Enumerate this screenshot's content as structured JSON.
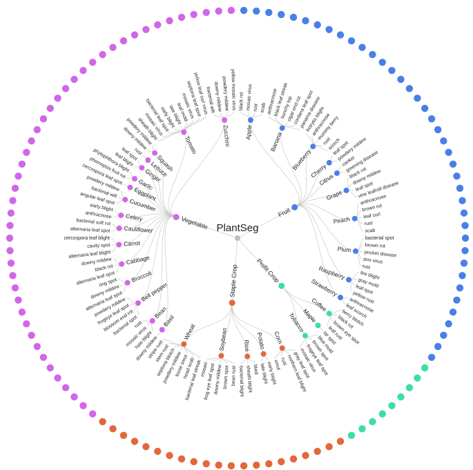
{
  "title": "PlantSeg",
  "colors": {
    "Vegetable": "#d266e8",
    "Fruit": "#4a7fe6",
    "Profit Crop": "#3fdcaa",
    "Staple Crop": "#e2683c",
    "root": "#bdbdbd"
  },
  "categories": [
    {
      "name": "Fruit",
      "crops": [
        {
          "name": "Apple",
          "diseases": [
            "black rot",
            "mosaic virus",
            "rust",
            "scab"
          ]
        },
        {
          "name": "Banana",
          "diseases": [
            "anthracnose",
            "black leaf streak",
            "bunchy top",
            "cigar end rot",
            "cordana leaf spot",
            "panama disease"
          ]
        },
        {
          "name": "Blueberry",
          "diseases": [
            "botrytis blight",
            "anthracnose",
            "mummy berry",
            "rust",
            "scorch"
          ]
        },
        {
          "name": "Cherry",
          "diseases": [
            "leaf spot",
            "powdery mildew"
          ]
        },
        {
          "name": "Citrus",
          "diseases": [
            "canker",
            "greening disease"
          ]
        },
        {
          "name": "Grape",
          "diseases": [
            "black rot",
            "downy mildew",
            "leaf spot",
            "vine leafroll disease"
          ]
        },
        {
          "name": "Peach",
          "diseases": [
            "anthracnose",
            "brown rot",
            "leaf curl",
            "rust",
            "scab"
          ]
        },
        {
          "name": "Plum",
          "diseases": [
            "bacterial spot",
            "brown rot",
            "pocket disease",
            "pox virus",
            "rust"
          ]
        },
        {
          "name": "Raspberry",
          "diseases": [
            "fire blight",
            "gray mold",
            "leaf spot",
            "yellow rust"
          ]
        },
        {
          "name": "Strawberry",
          "diseases": [
            "anthracnose",
            "leaf scorch"
          ]
        }
      ]
    },
    {
      "name": "Profit Crop",
      "crops": [
        {
          "name": "Coffee",
          "diseases": [
            "berry blotch",
            "black rot",
            "brown eye spot",
            "leaf rust"
          ]
        },
        {
          "name": "Maple",
          "diseases": [
            "tar spot"
          ]
        },
        {
          "name": "Tobacco",
          "diseases": [
            "blue mold",
            "brown spot",
            "frogeye leaf spot",
            "mosaic virus"
          ]
        }
      ]
    },
    {
      "name": "Staple Crop",
      "crops": [
        {
          "name": "Corn",
          "diseases": [
            "gray leaf spot",
            "northern leaf blight",
            "rust",
            "smut"
          ]
        },
        {
          "name": "Potato",
          "diseases": [
            "early blight",
            "late blight"
          ]
        },
        {
          "name": "Rice",
          "diseases": [
            "blast",
            "sheath blight",
            "bacterial blight"
          ]
        },
        {
          "name": "Soybean",
          "diseases": [
            "bean rust",
            "brown spot",
            "downy mildew",
            "frog eye leaf spot",
            "mosaic"
          ]
        },
        {
          "name": "Wheat",
          "diseases": [
            "bacterial leaf streak",
            "head scab",
            "loose smut",
            "powdery mildew",
            "septoria blotch",
            "stem rust",
            "stripe rust"
          ]
        }
      ]
    },
    {
      "name": "Vegetable",
      "crops": [
        {
          "name": "Basil",
          "diseases": [
            "downy mildew"
          ]
        },
        {
          "name": "Bean",
          "diseases": [
            "halo blight",
            "mosaic virus",
            "rust"
          ]
        },
        {
          "name": "Bell pepper",
          "diseases": [
            "bacterial spot",
            "blossom end rot",
            "frogeye leaf spot",
            "powdery mildew"
          ]
        },
        {
          "name": "Broccoli",
          "diseases": [
            "alternaria leaf spot",
            "downy mildew",
            "ring spot"
          ]
        },
        {
          "name": "Cabbage",
          "diseases": [
            "alternaria leaf spot",
            "black rot",
            "downy mildew"
          ]
        },
        {
          "name": "Carrot",
          "diseases": [
            "alternaria leaf blight",
            "cavity spot",
            "cercospora leaf blight"
          ]
        },
        {
          "name": "Cauliflower",
          "diseases": [
            "alternaria leaf spot",
            "bacterial soft rot"
          ]
        },
        {
          "name": "Celery",
          "diseases": [
            "anthracnose",
            "early blight"
          ]
        },
        {
          "name": "Cucumber",
          "diseases": [
            "angular leaf spot",
            "bacterial wilt",
            "powdery mildew"
          ]
        },
        {
          "name": "Eggplant",
          "diseases": [
            "cercospora leaf spot"
          ]
        },
        {
          "name": "Garlic",
          "diseases": [
            "phomopsis fruit rot",
            "phytophthora blight"
          ]
        },
        {
          "name": "Ginger",
          "diseases": [
            "leaf blight",
            "leaf spot"
          ]
        },
        {
          "name": "Lettuce",
          "diseases": [
            "rust"
          ]
        },
        {
          "name": "Squash",
          "diseases": [
            "downy mildew",
            "powdery mildew"
          ]
        },
        {
          "name": "Tomato",
          "diseases": [
            "sheath blight",
            "mosaic virus",
            "bacterial leaf spot",
            "early blight",
            "late blight",
            "leaf mold",
            "mosaic virus",
            "septoria leaf spot",
            "yellow leaf curl virus"
          ]
        },
        {
          "name": "Zucchini",
          "diseases": [
            "bacterial wilt",
            "downy mildew",
            "powdery mildew",
            "yellow mosaic virus"
          ]
        }
      ]
    }
  ]
}
